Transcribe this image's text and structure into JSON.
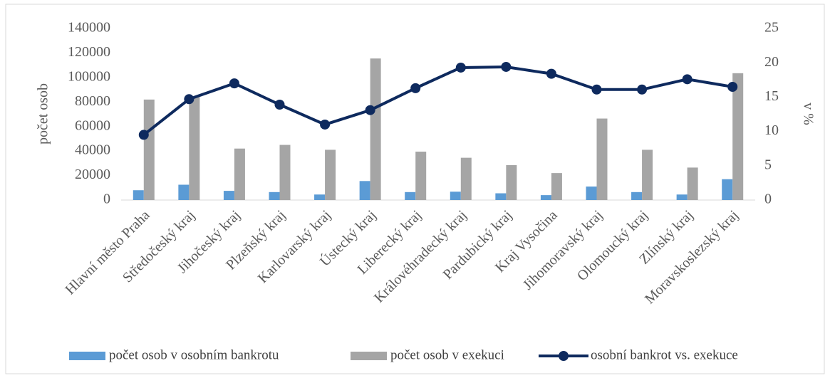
{
  "chart_data": {
    "type": "bar",
    "categories": [
      "Hlavní město Praha",
      "Středočeský kraj",
      "Jihočeský kraj",
      "Plzeňský kraj",
      "Karlovarský kraj",
      "Ústecký kraj",
      "Liberecký kraj",
      "Královéhradecký kraj",
      "Pardubický kraj",
      "Kraj Vysočina",
      "Jihomoravský kraj",
      "Olomoucký kraj",
      "Zlínský kraj",
      "Moravskoslezský kraj"
    ],
    "series": [
      {
        "name": "počet osob v osobním bankrotu",
        "type": "bar",
        "color": "#5b9bd5",
        "values": [
          8000,
          12500,
          7500,
          6500,
          4500,
          15500,
          6500,
          6800,
          5500,
          4000,
          11000,
          6500,
          4500,
          17000
        ]
      },
      {
        "name": "počet osob v exekuci",
        "type": "bar",
        "color": "#a5a5a5",
        "values": [
          82000,
          84000,
          42000,
          45000,
          41000,
          115500,
          39500,
          34500,
          28500,
          22000,
          66500,
          41000,
          26500,
          103500
        ]
      },
      {
        "name": "osobní bankrot vs. exekuce",
        "type": "line",
        "axis": "y2",
        "color": "#0e2a5e",
        "values": [
          9.5,
          14.7,
          17,
          13.9,
          11,
          13.1,
          16.3,
          19.3,
          19.4,
          18.4,
          16.1,
          16.1,
          17.6,
          16.5
        ]
      }
    ],
    "y_label": "počet osob",
    "y2_label": "v %",
    "ylim": [
      0,
      140000
    ],
    "yticks": [
      0,
      20000,
      40000,
      60000,
      80000,
      100000,
      120000,
      140000
    ],
    "y2lim": [
      0,
      25
    ],
    "y2ticks": [
      0,
      5,
      10,
      15,
      20,
      25
    ],
    "legend": "bottom"
  }
}
